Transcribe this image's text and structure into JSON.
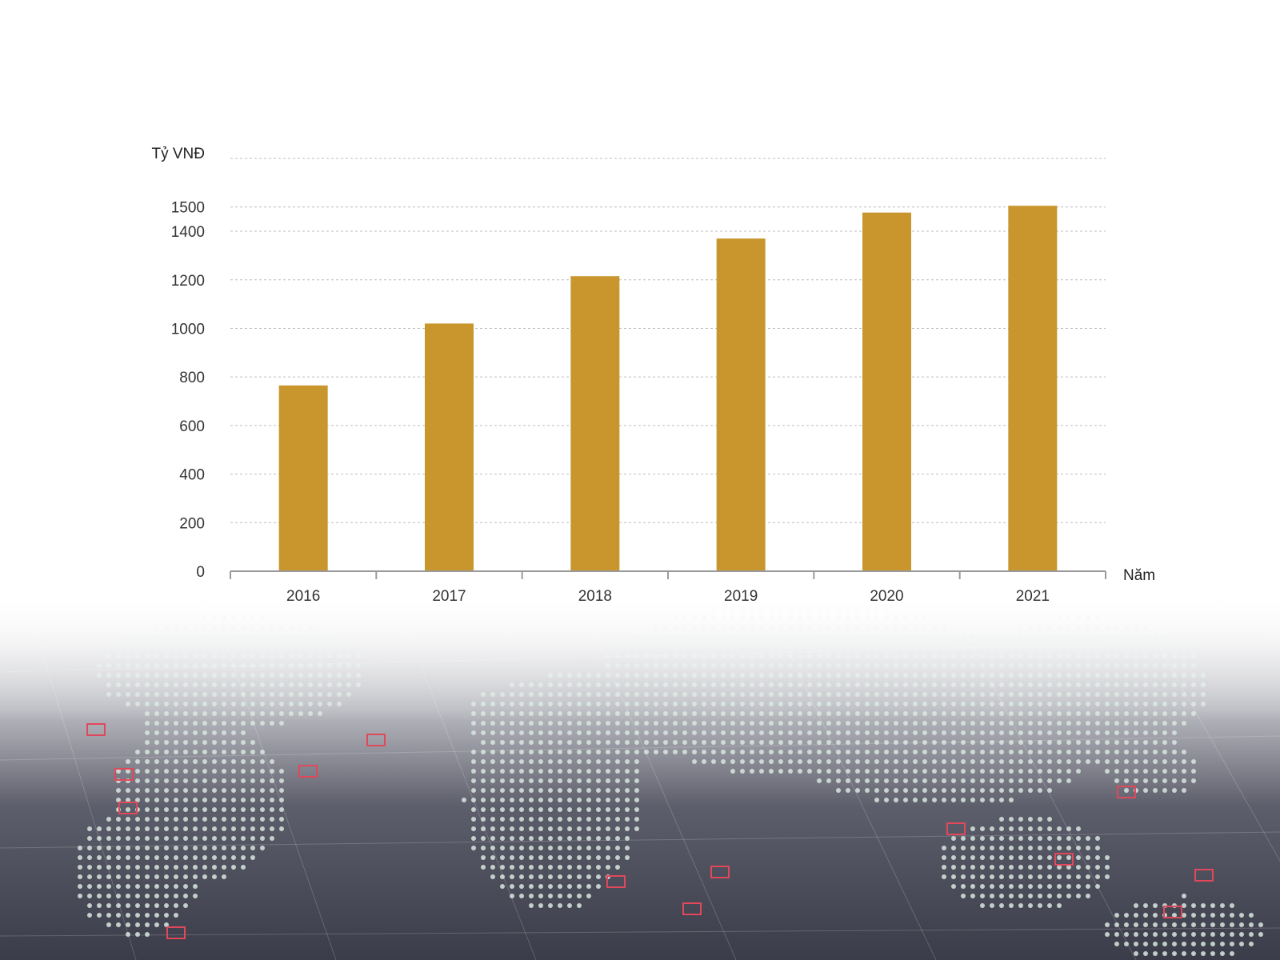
{
  "chart_data": {
    "type": "bar",
    "title": "",
    "xlabel": "Năm",
    "ylabel": "Tỷ VNĐ",
    "categories": [
      "2016",
      "2017",
      "2018",
      "2019",
      "2020",
      "2021"
    ],
    "values": [
      765,
      1020,
      1215,
      1370,
      1477,
      1505
    ],
    "ylim": [
      0,
      1700
    ],
    "yticks": [
      0,
      200,
      400,
      600,
      800,
      1000,
      1200,
      1400,
      1500
    ],
    "grid": true,
    "legend": "none",
    "colors": {
      "bar": "#c9962e",
      "grid": "#bdbdbd",
      "axis": "#9a9a9a",
      "text": "#333333"
    }
  },
  "background": {
    "description_icon": "world-map-dotted",
    "colors": {
      "dark": "#3e3e4c",
      "dot": "#d8e6de",
      "marker": "#e0485c"
    }
  }
}
